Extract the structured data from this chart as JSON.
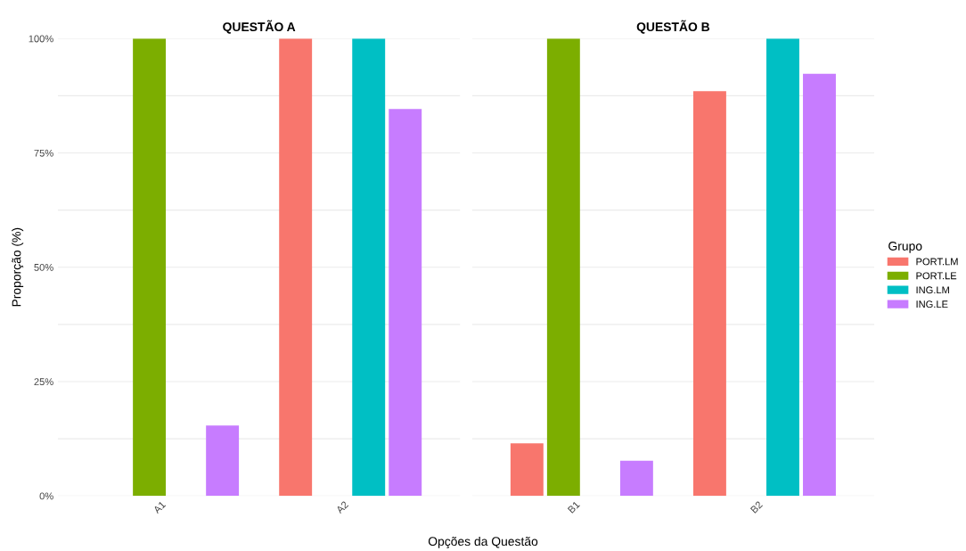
{
  "chart_data": [
    {
      "type": "bar",
      "title": "QUESTÃO A",
      "xlabel": "Opções da Questão",
      "ylabel": "Proporção (%)",
      "categories": [
        "A1",
        "A2"
      ],
      "series": [
        {
          "color": "#f8766d",
          "values": [
            null,
            100
          ]
        },
        {
          "color": "#7cae00",
          "values": [
            100,
            null
          ]
        },
        {
          "color": "#00bfc4",
          "values": [
            null,
            100
          ]
        },
        {
          "color": "#c77cff",
          "values": [
            15.4,
            84.6
          ]
        }
      ],
      "ylim": [
        0,
        100
      ],
      "yticks": [
        {
          "value": 0,
          "label": "0%"
        },
        {
          "value": 12.5,
          "label": null
        },
        {
          "value": 25,
          "label": "25%"
        },
        {
          "value": 37.5,
          "label": null
        },
        {
          "value": 50,
          "label": "50%"
        },
        {
          "value": 62.5,
          "label": null
        },
        {
          "value": 75,
          "label": "75%"
        },
        {
          "value": 87.5,
          "label": null
        },
        {
          "value": 100,
          "label": "100%"
        }
      ],
      "grid": "y"
    },
    {
      "type": "bar",
      "title": "QUESTÃO B",
      "categories": [
        "B1",
        "B2"
      ],
      "legend_title": "Grupo",
      "series": [
        {
          "name": "PORT.LM",
          "color": "#f8766d",
          "values": [
            11.5,
            88.5
          ]
        },
        {
          "name": "PORT.LE",
          "color": "#7cae00",
          "values": [
            100,
            null
          ]
        },
        {
          "name": "ING.LM",
          "color": "#00bfc4",
          "values": [
            null,
            100
          ]
        },
        {
          "name": "ING.LE",
          "color": "#c77cff",
          "values": [
            7.7,
            92.3
          ]
        }
      ],
      "ylim": [
        0,
        100
      ],
      "yticks": [
        {
          "value": 0,
          "label": null
        },
        {
          "value": 12.5,
          "label": null
        },
        {
          "value": 25,
          "label": null
        },
        {
          "value": 37.5,
          "label": null
        },
        {
          "value": 50,
          "label": null
        },
        {
          "value": 62.5,
          "label": null
        },
        {
          "value": 75,
          "label": null
        },
        {
          "value": 87.5,
          "label": null
        },
        {
          "value": 100,
          "label": null
        }
      ],
      "grid": "y",
      "legend": "right",
      "tick_labels": "x"
    }
  ]
}
